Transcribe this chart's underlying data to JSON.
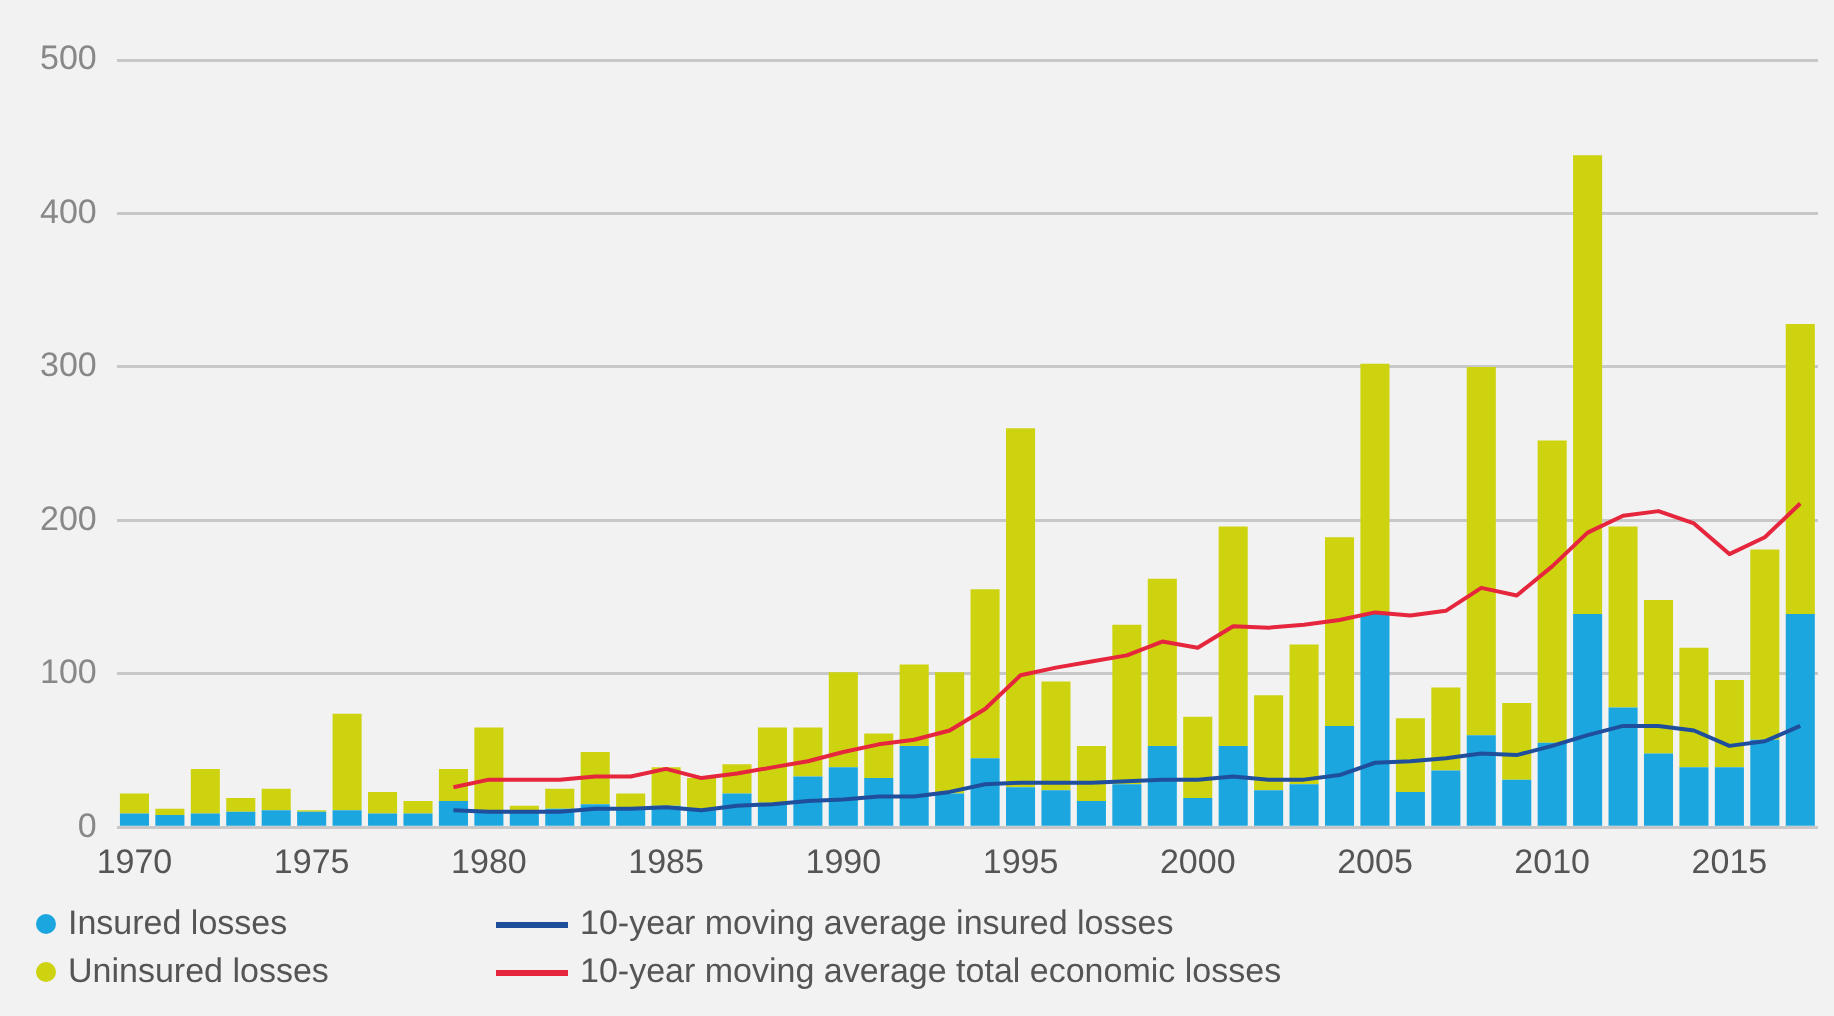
{
  "chart_data": {
    "type": "bar",
    "stacked": true,
    "categories": [
      "1970",
      null,
      null,
      null,
      null,
      "1975",
      null,
      null,
      null,
      null,
      "1980",
      null,
      null,
      null,
      null,
      "1985",
      null,
      null,
      null,
      null,
      "1990",
      null,
      null,
      null,
      null,
      "1995",
      null,
      null,
      null,
      null,
      "2000",
      null,
      null,
      null,
      null,
      "2005",
      null,
      null,
      null,
      null,
      "2010",
      null,
      null,
      null,
      null,
      "2015",
      null,
      null
    ],
    "series": [
      {
        "name": "Insured losses",
        "color": "#1ba6df",
        "values": [
          9,
          8,
          9,
          10,
          11,
          10,
          11,
          9,
          9,
          17,
          11,
          10,
          12,
          15,
          12,
          14,
          11,
          22,
          16,
          33,
          39,
          32,
          53,
          22,
          45,
          26,
          24,
          17,
          28,
          53,
          19,
          53,
          24,
          28,
          66,
          139,
          23,
          37,
          60,
          31,
          55,
          139,
          78,
          48,
          39,
          39,
          57,
          139
        ]
      },
      {
        "name": "Uninsured losses",
        "color": "#cdd30f",
        "values": [
          13,
          4,
          29,
          9,
          14,
          1,
          63,
          14,
          8,
          21,
          54,
          4,
          13,
          34,
          10,
          25,
          21,
          19,
          49,
          32,
          62,
          29,
          53,
          79,
          110,
          234,
          71,
          36,
          104,
          109,
          53,
          143,
          62,
          91,
          123,
          163,
          48,
          54,
          240,
          50,
          197,
          299,
          118,
          100,
          78,
          57,
          124,
          189
        ]
      },
      {
        "name": "10-year moving average insured losses",
        "type": "line",
        "color": "#1f4f9c",
        "values": [
          null,
          null,
          null,
          null,
          null,
          null,
          null,
          null,
          null,
          11,
          10,
          10,
          10,
          12,
          12,
          13,
          11,
          14,
          15,
          17,
          18,
          20,
          20,
          23,
          28,
          29,
          29,
          29,
          30,
          31,
          31,
          33,
          31,
          31,
          34,
          42,
          43,
          45,
          48,
          47,
          53,
          60,
          66,
          66,
          63,
          53,
          56,
          66
        ]
      },
      {
        "name": "10-year moving average total economic losses",
        "type": "line",
        "color": "#e5263d",
        "values": [
          null,
          null,
          null,
          null,
          null,
          null,
          null,
          null,
          null,
          26,
          31,
          31,
          31,
          33,
          33,
          38,
          32,
          35,
          39,
          43,
          49,
          54,
          57,
          63,
          77,
          99,
          104,
          108,
          112,
          121,
          117,
          131,
          130,
          132,
          135,
          140,
          138,
          141,
          156,
          151,
          170,
          192,
          203,
          206,
          198,
          178,
          189,
          211
        ]
      }
    ],
    "ylim": [
      0,
      500
    ],
    "yticks": [
      0,
      100,
      200,
      300,
      400,
      500
    ],
    "grid": "y",
    "legend": "bottom",
    "marker": "none",
    "line_style": "solid"
  }
}
